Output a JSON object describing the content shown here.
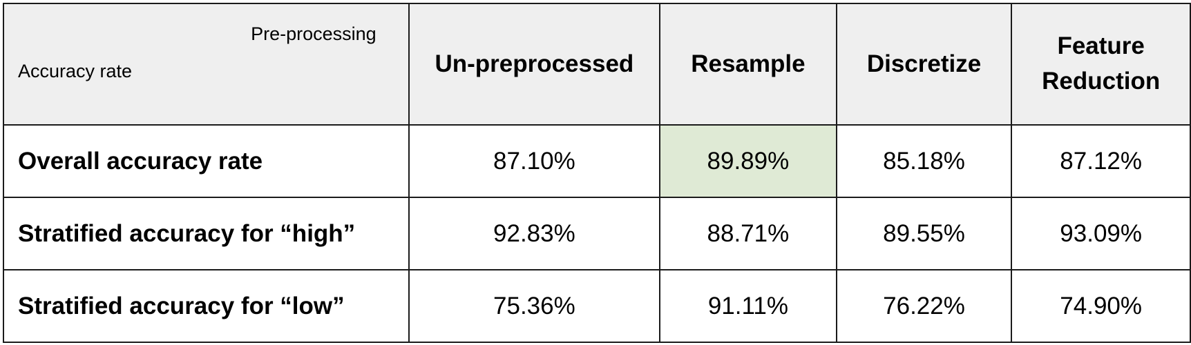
{
  "table": {
    "corner_top": "Pre-processing",
    "corner_bottom": "Accuracy rate",
    "columns": [
      {
        "line1": "Un-preprocessed",
        "line2": ""
      },
      {
        "line1": "Resample",
        "line2": ""
      },
      {
        "line1": "Discretize",
        "line2": ""
      },
      {
        "line1": "Feature",
        "line2": "Reduction"
      }
    ],
    "rows": [
      {
        "label": "Overall accuracy rate",
        "values": [
          "87.10%",
          "89.89%",
          "85.18%",
          "87.12%"
        ]
      },
      {
        "label": "Stratified accuracy for “high”",
        "values": [
          "92.83%",
          "88.71%",
          "89.55%",
          "93.09%"
        ]
      },
      {
        "label": "Stratified accuracy for “low”",
        "values": [
          "75.36%",
          "91.11%",
          "76.22%",
          "74.90%"
        ]
      }
    ],
    "highlight_color": "#dfead5",
    "header_bg": "#efefef"
  },
  "chart_data": {
    "type": "table",
    "title": "",
    "categories": [
      "Un-preprocessed",
      "Resample",
      "Discretize",
      "Feature Reduction"
    ],
    "series": [
      {
        "name": "Overall accuracy rate",
        "values": [
          87.1,
          89.89,
          85.18,
          87.12
        ]
      },
      {
        "name": "Stratified accuracy for “high”",
        "values": [
          92.83,
          88.71,
          89.55,
          93.09
        ]
      },
      {
        "name": "Stratified accuracy for “low”",
        "values": [
          75.36,
          91.11,
          76.22,
          74.9
        ]
      }
    ],
    "unit": "%",
    "highlighted_cell": {
      "row": "Overall accuracy rate",
      "column": "Resample"
    }
  }
}
